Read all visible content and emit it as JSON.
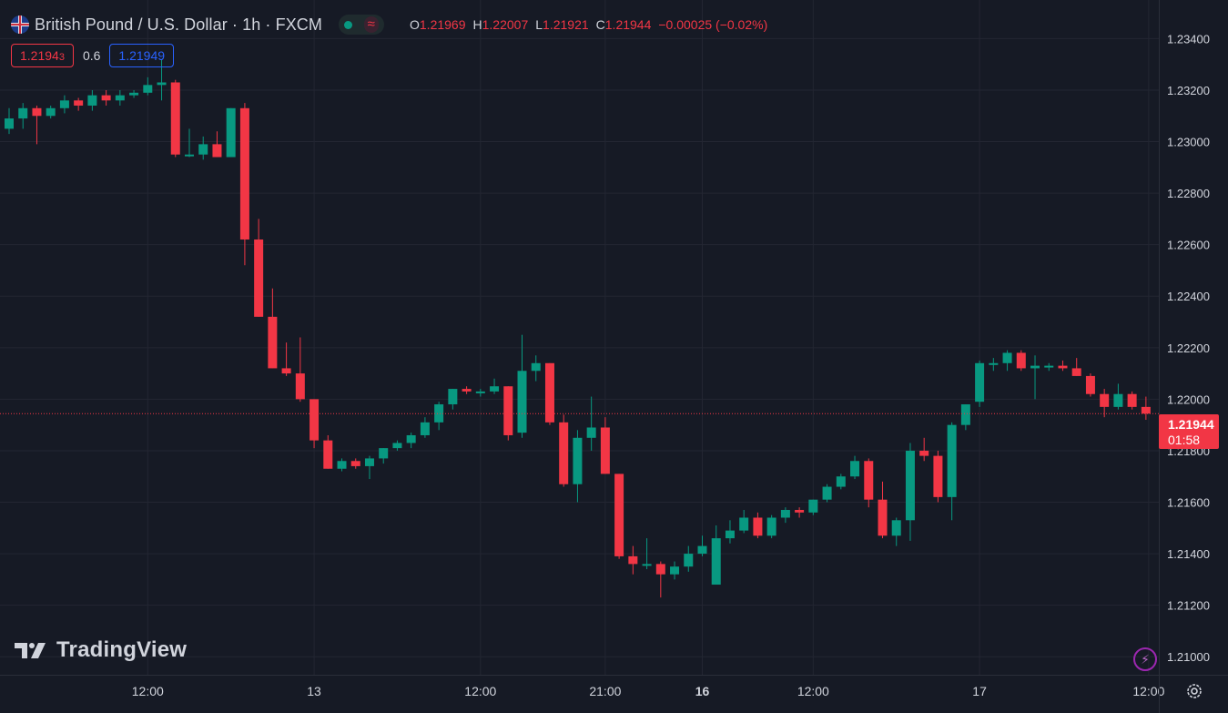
{
  "header": {
    "title": "British Pound / U.S. Dollar · 1h · FXCM",
    "status_icon": "wave-icon",
    "ohlc": {
      "o_label": "O",
      "o_value": "1.21969",
      "h_label": "H",
      "h_value": "1.22007",
      "l_label": "L",
      "l_value": "1.21921",
      "c_label": "C",
      "c_value": "1.21944",
      "change": "−0.00025 (−0.02%)"
    }
  },
  "trade": {
    "sell_main": "1.2194",
    "sell_small": "3",
    "spread": "0.6",
    "buy": "1.21949"
  },
  "current_price": {
    "value": "1.21944",
    "countdown": "01:58"
  },
  "branding": {
    "logo_text": "TradingView"
  },
  "colors": {
    "background": "#161a25",
    "up": "#089981",
    "down": "#f23645",
    "grid": "#232632",
    "text": "#d1d4dc",
    "buy": "#2962ff"
  },
  "chart_data": {
    "type": "candlestick",
    "title": "British Pound / U.S. Dollar · 1h · FXCM",
    "y_axis": {
      "ticks": [
        "1.23400",
        "1.23200",
        "1.23000",
        "1.22800",
        "1.22600",
        "1.22400",
        "1.22200",
        "1.22000",
        "1.21800",
        "1.21600",
        "1.21400",
        "1.21200",
        "1.21000"
      ],
      "ylim": [
        1.2093,
        1.2355
      ]
    },
    "x_axis": {
      "ticks": [
        {
          "label": "12:00",
          "index": 10,
          "bold": false
        },
        {
          "label": "13",
          "index": 22,
          "bold": false
        },
        {
          "label": "12:00",
          "index": 34,
          "bold": false
        },
        {
          "label": "21:00",
          "index": 43,
          "bold": false
        },
        {
          "label": "16",
          "index": 50,
          "bold": true
        },
        {
          "label": "12:00",
          "index": 58,
          "bold": false
        },
        {
          "label": "17",
          "index": 70,
          "bold": false
        },
        {
          "label": "12:00",
          "index": 82,
          "bold": false
        }
      ]
    },
    "grid": true,
    "last_price": 1.21944,
    "candles": [
      [
        1.2305,
        1.2313,
        1.2303,
        1.2309
      ],
      [
        1.2309,
        1.2315,
        1.2305,
        1.2313
      ],
      [
        1.2313,
        1.2314,
        1.2299,
        1.231
      ],
      [
        1.231,
        1.2314,
        1.2309,
        1.2313
      ],
      [
        1.2313,
        1.2318,
        1.2311,
        1.2316
      ],
      [
        1.2316,
        1.2317,
        1.2312,
        1.2314
      ],
      [
        1.2314,
        1.232,
        1.2312,
        1.2318
      ],
      [
        1.2318,
        1.232,
        1.2314,
        1.2316
      ],
      [
        1.2316,
        1.232,
        1.2314,
        1.2318
      ],
      [
        1.2318,
        1.232,
        1.2317,
        1.2319
      ],
      [
        1.2319,
        1.2325,
        1.2318,
        1.2322
      ],
      [
        1.2322,
        1.2332,
        1.2316,
        1.2323
      ],
      [
        1.2323,
        1.2324,
        1.2294,
        1.2295
      ],
      [
        1.2295,
        1.2305,
        1.2294,
        1.2295
      ],
      [
        1.2295,
        1.2302,
        1.2293,
        1.2299
      ],
      [
        1.2299,
        1.2304,
        1.2294,
        1.2294
      ],
      [
        1.2294,
        1.2313,
        1.2294,
        1.2313
      ],
      [
        1.2313,
        1.2315,
        1.2252,
        1.2262
      ],
      [
        1.2262,
        1.227,
        1.2232,
        1.2232
      ],
      [
        1.2232,
        1.2243,
        1.2212,
        1.2212
      ],
      [
        1.2212,
        1.2222,
        1.2209,
        1.221
      ],
      [
        1.221,
        1.2224,
        1.2199,
        1.22
      ],
      [
        1.22,
        1.22,
        1.2181,
        1.2184
      ],
      [
        1.2184,
        1.2186,
        1.2173,
        1.2173
      ],
      [
        1.2173,
        1.2177,
        1.2172,
        1.2176
      ],
      [
        1.2176,
        1.2177,
        1.2173,
        1.2174
      ],
      [
        1.2174,
        1.2178,
        1.2169,
        1.2177
      ],
      [
        1.2177,
        1.2181,
        1.2175,
        1.2181
      ],
      [
        1.2181,
        1.2184,
        1.218,
        1.2183
      ],
      [
        1.2183,
        1.2187,
        1.2181,
        1.2186
      ],
      [
        1.2186,
        1.2193,
        1.2185,
        1.2191
      ],
      [
        1.2191,
        1.2199,
        1.2188,
        1.2198
      ],
      [
        1.2198,
        1.2204,
        1.2196,
        1.2204
      ],
      [
        1.2204,
        1.2205,
        1.2202,
        1.2203
      ],
      [
        1.2203,
        1.2204,
        1.2201,
        1.2203
      ],
      [
        1.2203,
        1.2208,
        1.2202,
        1.2205
      ],
      [
        1.2205,
        1.2205,
        1.2184,
        1.2186
      ],
      [
        1.2187,
        1.2225,
        1.2185,
        1.2211
      ],
      [
        1.2211,
        1.2217,
        1.2207,
        1.2214
      ],
      [
        1.2214,
        1.2214,
        1.219,
        1.2191
      ],
      [
        1.2191,
        1.2194,
        1.2166,
        1.2167
      ],
      [
        1.2167,
        1.2188,
        1.216,
        1.2185
      ],
      [
        1.2185,
        1.2201,
        1.218,
        1.2189
      ],
      [
        1.2189,
        1.2193,
        1.2171,
        1.2171
      ],
      [
        1.2171,
        1.2171,
        1.2138,
        1.2139
      ],
      [
        1.2139,
        1.2143,
        1.2132,
        1.2136
      ],
      [
        1.2136,
        1.2146,
        1.2134,
        1.2136
      ],
      [
        1.2136,
        1.2137,
        1.2123,
        1.2132
      ],
      [
        1.2132,
        1.2137,
        1.213,
        1.2135
      ],
      [
        1.2135,
        1.2143,
        1.2133,
        1.214
      ],
      [
        1.214,
        1.2147,
        1.2139,
        1.2143
      ],
      [
        1.2128,
        1.2151,
        1.2128,
        1.2146
      ],
      [
        1.2146,
        1.2153,
        1.2144,
        1.2149
      ],
      [
        1.2149,
        1.2157,
        1.2148,
        1.2154
      ],
      [
        1.2154,
        1.2156,
        1.2146,
        1.2147
      ],
      [
        1.2147,
        1.2155,
        1.2146,
        1.2154
      ],
      [
        1.2154,
        1.2158,
        1.2152,
        1.2157
      ],
      [
        1.2157,
        1.2158,
        1.2154,
        1.2156
      ],
      [
        1.2156,
        1.2161,
        1.2155,
        1.2161
      ],
      [
        1.2161,
        1.2167,
        1.216,
        1.2166
      ],
      [
        1.2166,
        1.2171,
        1.2165,
        1.217
      ],
      [
        1.217,
        1.2178,
        1.2169,
        1.2176
      ],
      [
        1.2176,
        1.2177,
        1.2158,
        1.2161
      ],
      [
        1.2161,
        1.2168,
        1.2146,
        1.2147
      ],
      [
        1.2147,
        1.2154,
        1.2143,
        1.2153
      ],
      [
        1.2153,
        1.2183,
        1.2145,
        1.218
      ],
      [
        1.218,
        1.2185,
        1.2176,
        1.2178
      ],
      [
        1.2178,
        1.218,
        1.216,
        1.2162
      ],
      [
        1.2162,
        1.2191,
        1.2153,
        1.219
      ],
      [
        1.219,
        1.2198,
        1.2188,
        1.2198
      ],
      [
        1.2199,
        1.2215,
        1.2197,
        1.2214
      ],
      [
        1.2214,
        1.2216,
        1.2211,
        1.2214
      ],
      [
        1.2214,
        1.2219,
        1.2211,
        1.2218
      ],
      [
        1.2218,
        1.2219,
        1.2211,
        1.2212
      ],
      [
        1.2212,
        1.2217,
        1.22,
        1.2213
      ],
      [
        1.2213,
        1.2214,
        1.2211,
        1.2213
      ],
      [
        1.2213,
        1.2215,
        1.2211,
        1.2212
      ],
      [
        1.2212,
        1.2216,
        1.2209,
        1.2209
      ],
      [
        1.2209,
        1.221,
        1.2201,
        1.2202
      ],
      [
        1.2202,
        1.2204,
        1.2193,
        1.2197
      ],
      [
        1.2197,
        1.2206,
        1.2196,
        1.2202
      ],
      [
        1.2202,
        1.2203,
        1.2196,
        1.2197
      ],
      [
        1.2197,
        1.2201,
        1.2192,
        1.21944
      ]
    ]
  }
}
